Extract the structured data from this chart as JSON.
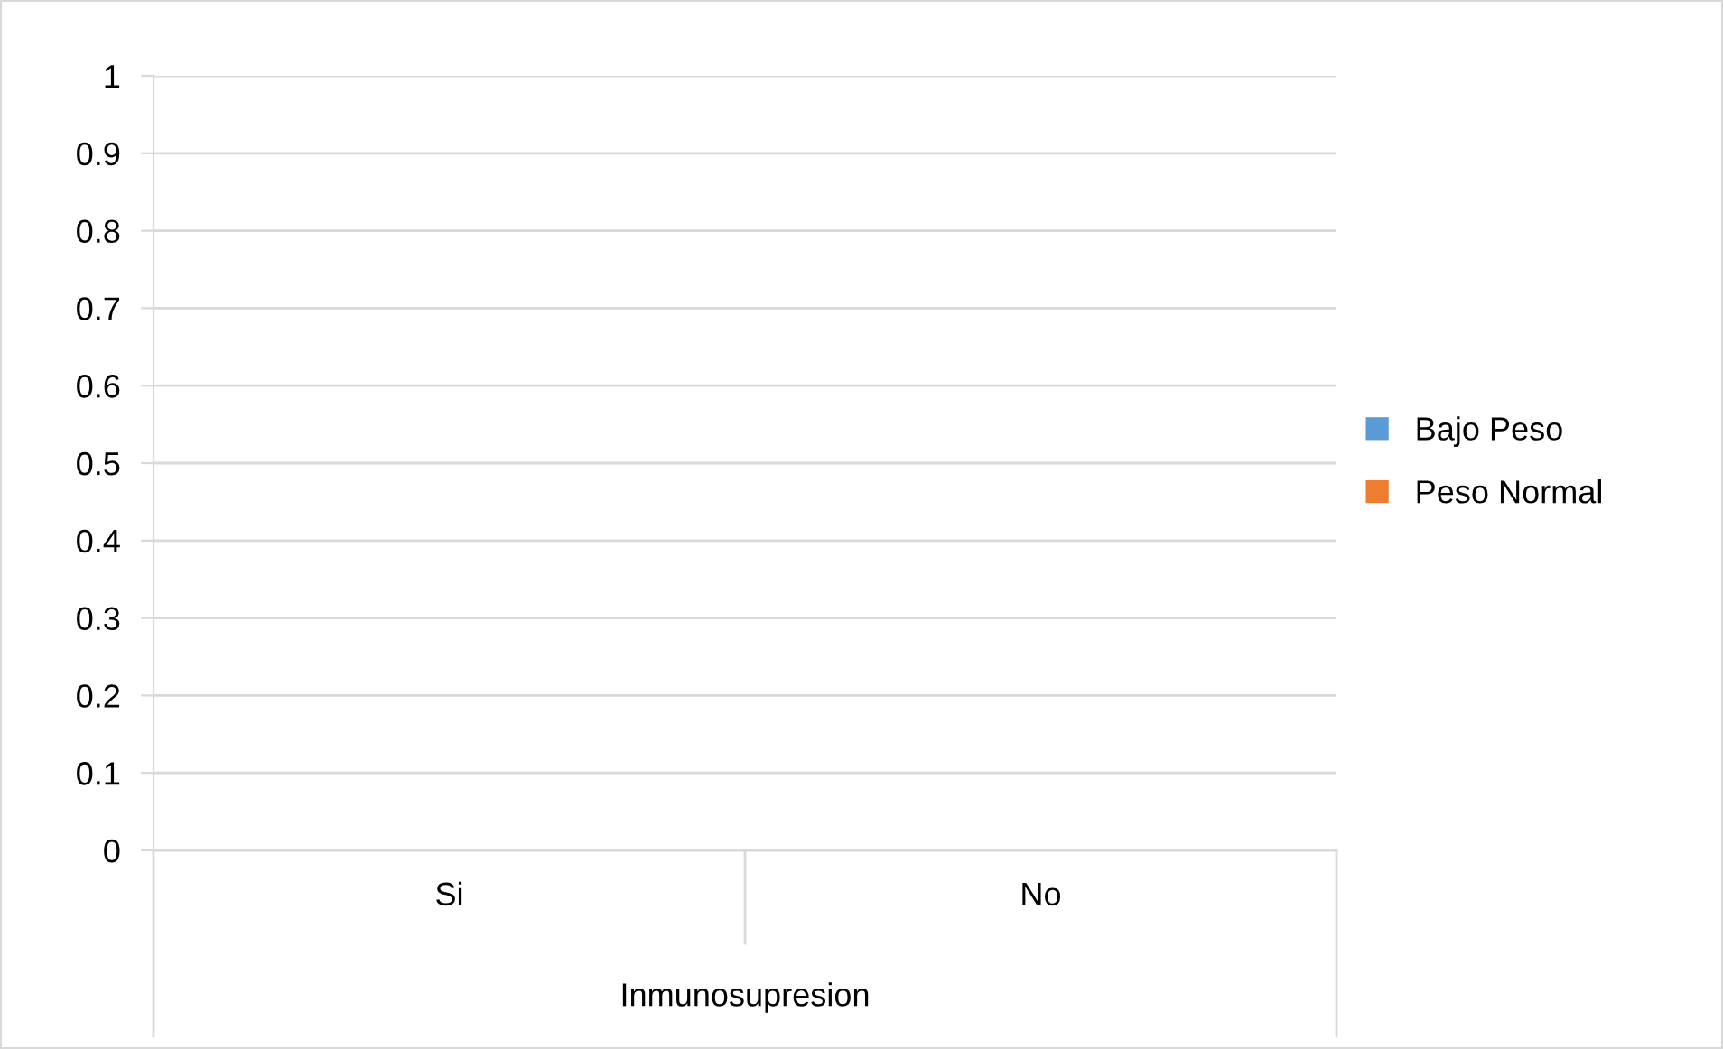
{
  "chart_data": {
    "type": "bar",
    "categories": [
      "Si",
      "No"
    ],
    "xlabel": "Inmunosupresion",
    "series": [
      {
        "name": "Bajo Peso",
        "color": "#5b9bd5",
        "values": [
          0,
          0
        ]
      },
      {
        "name": "Peso Normal",
        "color": "#ed7d31",
        "values": [
          0,
          0
        ]
      }
    ],
    "ylim": [
      0,
      1
    ],
    "yticks": [
      0,
      0.1,
      0.2,
      0.3,
      0.4,
      0.5,
      0.6,
      0.7,
      0.8,
      0.9,
      1
    ],
    "grid": "y",
    "legend": "right"
  }
}
